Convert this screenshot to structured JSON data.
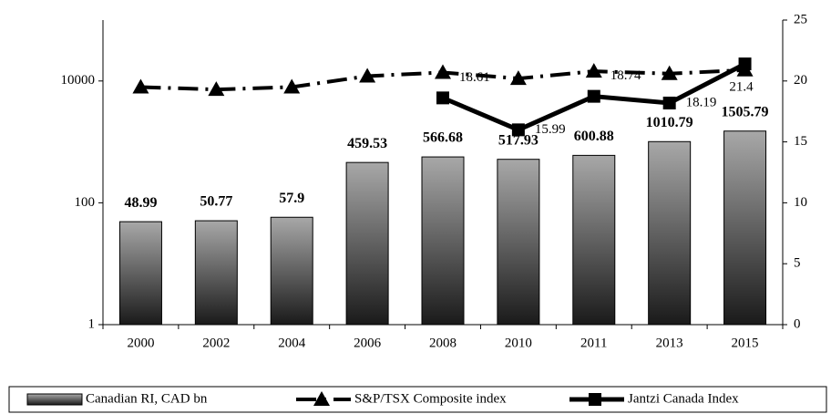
{
  "chart_data": {
    "type": "bar",
    "categories": [
      "2000",
      "2002",
      "2004",
      "2006",
      "2008",
      "2010",
      "2011",
      "2013",
      "2015"
    ],
    "series": [
      {
        "name": "Canadian RI, CAD bn",
        "type": "bar",
        "color": "#808080",
        "values": [
          48.99,
          50.77,
          57.9,
          459.53,
          566.68,
          517.93,
          600.88,
          1010.79,
          1505.79
        ]
      },
      {
        "name": "S&P/TSX Composite index",
        "type": "line",
        "axis": "y2",
        "color": "#000000",
        "marker": "triangle",
        "dash": "dash-dot",
        "values": [
          19.5,
          19.3,
          19.5,
          20.4,
          20.7,
          20.2,
          20.8,
          20.6,
          20.9
        ]
      },
      {
        "name": "Jantzi Canada Index",
        "type": "line",
        "axis": "y2",
        "color": "#000000",
        "marker": "square",
        "values": [
          null,
          null,
          null,
          null,
          18.61,
          15.99,
          18.74,
          18.19,
          21.4
        ]
      }
    ],
    "ylim": [
      1,
      100000
    ],
    "yticks": [
      1,
      100,
      10000
    ],
    "log_y": true,
    "y2lim": [
      0,
      25
    ],
    "y2ticks": [
      0,
      5,
      10,
      15,
      20,
      25
    ],
    "legend": "bottom"
  }
}
